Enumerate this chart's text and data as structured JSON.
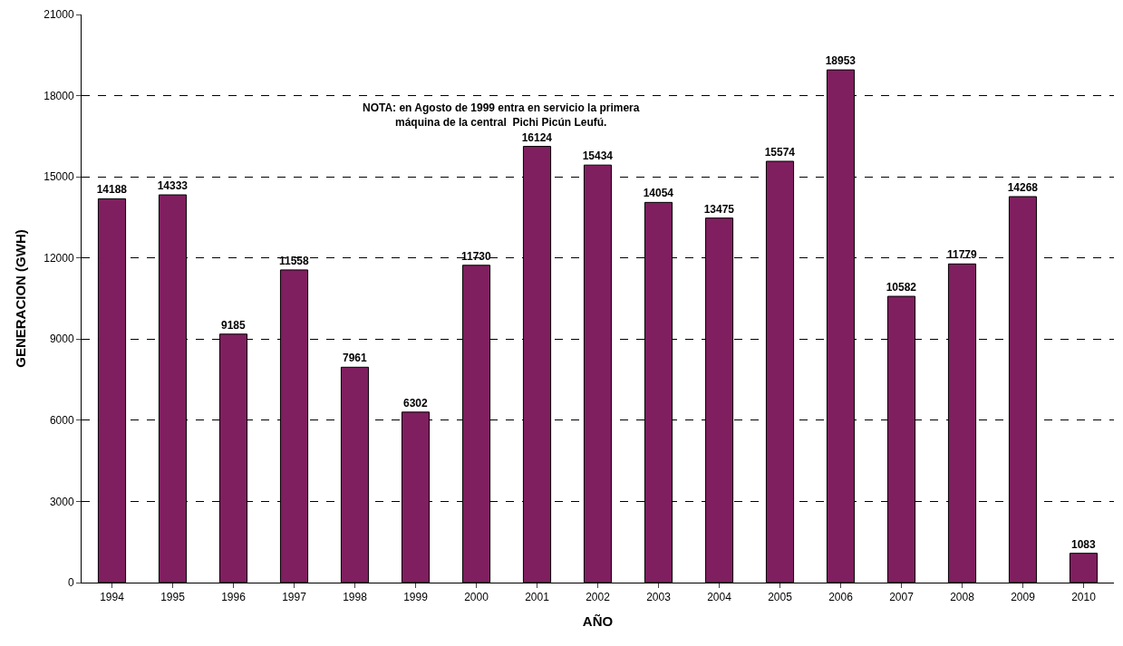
{
  "chart_data": {
    "type": "bar",
    "xlabel": "AÑO",
    "ylabel": "GENERACION (GWH)",
    "categories": [
      "1994",
      "1995",
      "1996",
      "1997",
      "1998",
      "1999",
      "2000",
      "2001",
      "2002",
      "2003",
      "2004",
      "2005",
      "2006",
      "2007",
      "2008",
      "2009",
      "2010"
    ],
    "values": [
      14188,
      14333,
      9185,
      11558,
      7961,
      6302,
      11730,
      16124,
      15434,
      14054,
      13475,
      15574,
      18953,
      10582,
      11779,
      14268,
      1083
    ],
    "color": "#7f1f5f",
    "data_labels": true,
    "grid": "y",
    "ylim": [
      0,
      21000
    ],
    "yticks": [
      0,
      3000,
      6000,
      9000,
      12000,
      15000,
      18000,
      21000
    ],
    "annotations": [
      "NOTA: en Agosto de 1999 entra en servicio la primera\nmáquina de la central  Pichi Picún Leufú."
    ]
  }
}
